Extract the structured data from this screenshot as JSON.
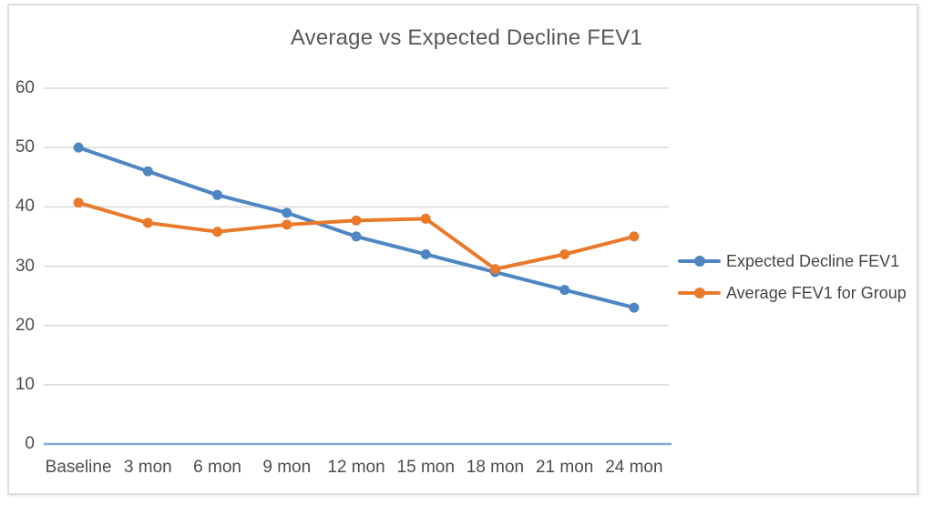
{
  "chart_data": {
    "type": "line",
    "title": "Average vs Expected Decline FEV1",
    "categories": [
      "Baseline",
      "3 mon",
      "6 mon",
      "9 mon",
      "12 mon",
      "15 mon",
      "18 mon",
      "21 mon",
      "24 mon"
    ],
    "series": [
      {
        "name": "Expected Decline FEV1",
        "color": "#4e86c3",
        "values": [
          50,
          46,
          42,
          39,
          35,
          32,
          29,
          26,
          23
        ]
      },
      {
        "name": "Average FEV1 for Group",
        "color": "#e97a2b",
        "values": [
          40.7,
          37.3,
          35.8,
          37,
          37.7,
          38,
          29.5,
          32,
          35
        ]
      }
    ],
    "xlabel": "",
    "ylabel": "",
    "ylim": [
      0,
      60
    ],
    "y_ticks": [
      0,
      10,
      20,
      30,
      40,
      50,
      60
    ],
    "grid": true,
    "legend_position": "right",
    "colors": {
      "gridline": "#d9d9d9",
      "axis_line": "#7facd6",
      "title_text": "#595959",
      "tick_text": "#4d4d4d",
      "legend_text": "#454545",
      "frame_border": "#dedede",
      "background": "#ffffff"
    }
  }
}
